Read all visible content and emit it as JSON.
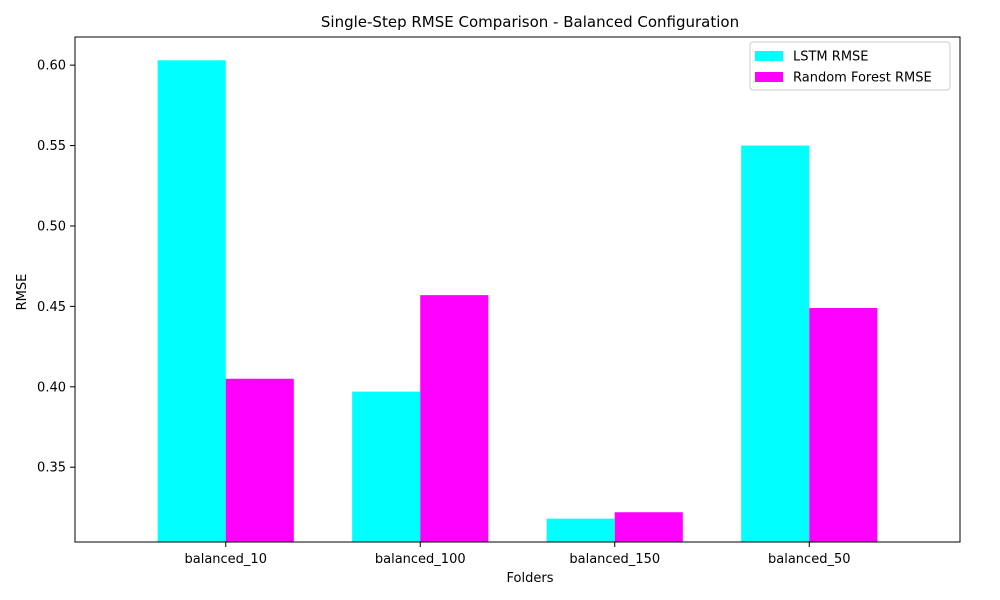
{
  "chart_data": {
    "type": "bar",
    "title": "Single-Step RMSE Comparison - Balanced Configuration",
    "xlabel": "Folders",
    "ylabel": "RMSE",
    "categories": [
      "balanced_10",
      "balanced_100",
      "balanced_150",
      "balanced_50"
    ],
    "series": [
      {
        "name": "LSTM RMSE",
        "color": "#00ffff",
        "values": [
          0.603,
          0.397,
          0.318,
          0.55
        ]
      },
      {
        "name": "Random Forest RMSE",
        "color": "#ff00ff",
        "values": [
          0.405,
          0.457,
          0.322,
          0.449
        ]
      }
    ],
    "ylim": [
      0.3035,
      0.6175
    ],
    "yticks": [
      0.35,
      0.4,
      0.45,
      0.5,
      0.55,
      0.6
    ],
    "ytick_labels": [
      "0.35",
      "0.40",
      "0.45",
      "0.50",
      "0.55",
      "0.60"
    ],
    "legend_position": "top-right",
    "grid": false
  }
}
